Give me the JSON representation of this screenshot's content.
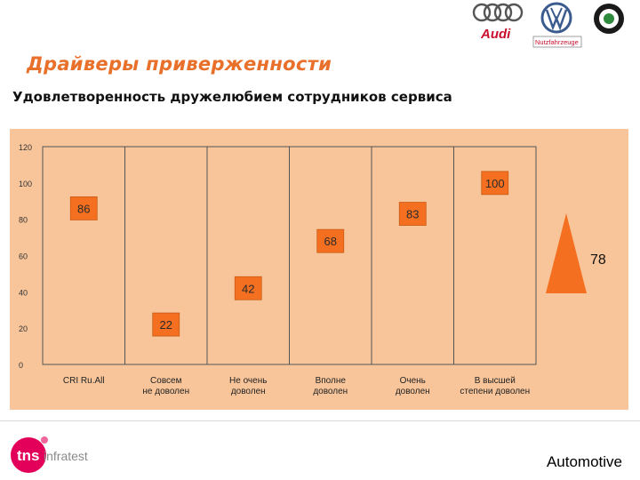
{
  "header": {
    "title": "Драйверы приверженности",
    "subtitle": "Удовлетворенность дружелюбием сотрудников сервиса"
  },
  "brands": {
    "audi": "Audi",
    "vw": "Nutzfahrzeuge"
  },
  "chart_data": {
    "type": "scatter",
    "categories": [
      "CRI Ru.All",
      "Совсем\nне доволен",
      "Не очень\nдоволен",
      "Вполне\nдоволен",
      "Очень\nдоволен",
      "В высшей\nстепени доволен"
    ],
    "values": [
      86,
      22,
      42,
      68,
      83,
      100
    ],
    "data_labels": [
      "86",
      "22",
      "42",
      "68",
      "83",
      "100"
    ],
    "ylim": [
      0,
      120
    ],
    "yticks": [
      "0",
      "20",
      "40",
      "60",
      "80",
      "100",
      "120"
    ],
    "marker_color": "#f46f1f",
    "background_color": "#f8c59a",
    "indicator": {
      "label": "78",
      "color": "#f46f1f"
    }
  },
  "footer": {
    "logo_text": "tns",
    "logo_sub": "infratest",
    "label": "Automotive"
  }
}
